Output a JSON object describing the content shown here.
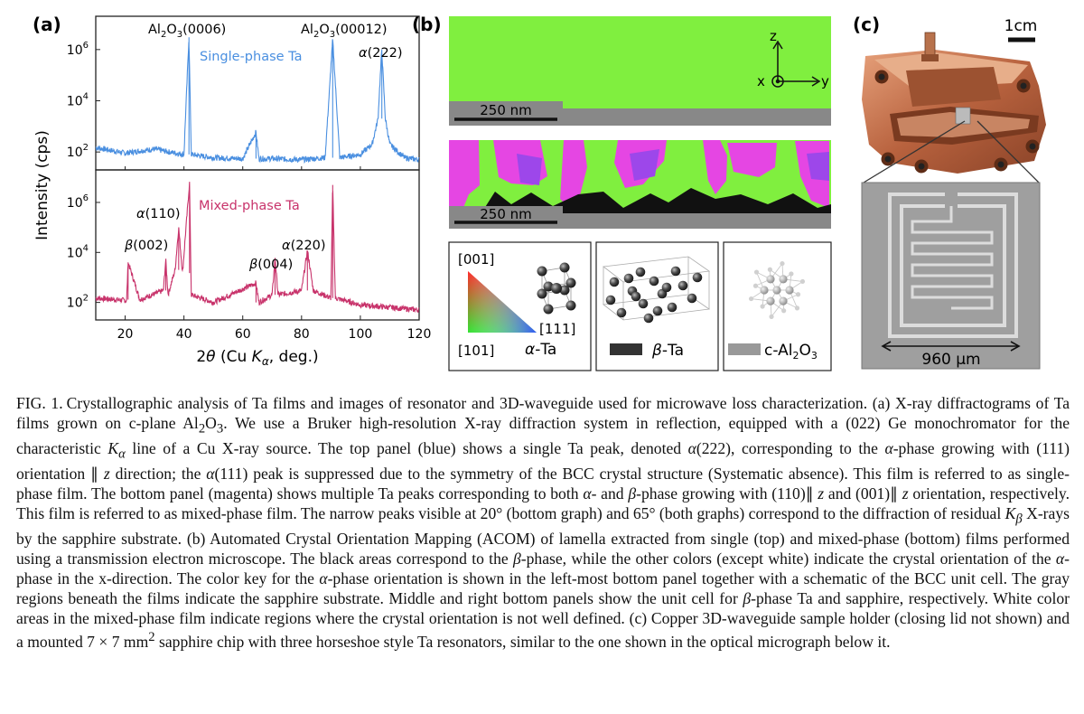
{
  "panel_a": {
    "label": "(a)",
    "ylabel": "Intensity (cps)",
    "xlabel": "2θ (Cu K",
    "xlabel_sub": "α",
    "xlabel_tail": ", deg.)",
    "xticks": [
      "20",
      "40",
      "60",
      "80",
      "100",
      "120"
    ],
    "yticks": [
      {
        "base": "10",
        "exp": "6"
      },
      {
        "base": "10",
        "exp": "4"
      },
      {
        "base": "10",
        "exp": "2"
      }
    ],
    "top_labels": {
      "al_0006": {
        "a": "Al",
        "s1": "2",
        "b": "O",
        "s2": "3",
        "c": "(0006)"
      },
      "al_00012": {
        "a": "Al",
        "s1": "2",
        "b": "O",
        "s2": "3",
        "c": "(00012)"
      }
    },
    "single_label": "Single-phase Ta",
    "mixed_label": "Mixed-phase Ta",
    "peak_labels": {
      "a222": {
        "g": "α",
        "t": "(222)"
      },
      "a110": {
        "g": "α",
        "t": "(110)"
      },
      "b002": {
        "g": "β",
        "t": "(002)"
      },
      "b004": {
        "g": "β",
        "t": "(004)"
      },
      "a220": {
        "g": "α",
        "t": "(220)"
      }
    },
    "colors": {
      "single": "#4a8fe0",
      "mixed": "#c8336b"
    }
  },
  "chart_data": [
    {
      "type": "line",
      "title": "",
      "xlabel": "2θ (Cu Kα, deg.)",
      "ylabel": "Intensity (cps)",
      "xlim": [
        10,
        120
      ],
      "ylim_log10": [
        1.3,
        7.3
      ],
      "log_y": true,
      "series": [
        {
          "name": "Single-phase Ta",
          "x": [
            10,
            20,
            25,
            30,
            35,
            40,
            41.7,
            42.5,
            50,
            60,
            64.5,
            65.5,
            70,
            80,
            88,
            90.6,
            93,
            100,
            104,
            106,
            107.3,
            108.5,
            110,
            115,
            120
          ],
          "y": [
            150,
            90,
            110,
            130,
            100,
            80,
            3000000,
            80,
            60,
            55,
            600,
            55,
            55,
            50,
            60,
            2500000,
            60,
            80,
            200,
            2000,
            1000000,
            2000,
            200,
            60,
            50
          ]
        }
      ]
    },
    {
      "type": "line",
      "title": "",
      "xlabel": "2θ (Cu Kα, deg.)",
      "ylabel": "Intensity (cps)",
      "xlim": [
        10,
        120
      ],
      "ylim_log10": [
        1.3,
        7.3
      ],
      "log_y": true,
      "series": [
        {
          "name": "Mixed-phase Ta",
          "x": [
            10,
            20.5,
            21,
            25,
            33,
            33.8,
            34.6,
            37,
            38.2,
            39.5,
            41.9,
            42.5,
            50,
            64.5,
            65.5,
            70,
            71,
            72,
            80,
            82,
            84,
            90,
            90.6,
            91.5,
            100,
            120
          ],
          "y": [
            150,
            120,
            4000,
            130,
            300,
            5000,
            200,
            2000,
            100000,
            1500,
            6000000,
            200,
            100,
            600,
            100,
            200,
            6000,
            200,
            300,
            12000,
            300,
            150,
            5000000,
            150,
            80,
            50
          ]
        }
      ]
    }
  ],
  "panel_b": {
    "label": "(b)",
    "scale1": "250 nm",
    "scale2": "250 nm",
    "axis_z": "z",
    "axis_x": "x",
    "axis_y": "y",
    "key_001": "[001]",
    "key_101": "[101]",
    "key_111": "[111]",
    "alpha_ta": {
      "g": "α",
      "t": "-Ta"
    },
    "beta_ta": {
      "g": "β",
      "t": "-Ta"
    },
    "sapphire": {
      "a": "c-Al",
      "s1": "2",
      "b": "O",
      "s2": "3"
    },
    "colors": {
      "green": "#80ef3f",
      "magenta": "#e546e3",
      "violet": "#9d47ea",
      "gray": "#888888",
      "black": "#111111"
    }
  },
  "panel_c": {
    "label": "(c)",
    "scale_top": "1cm",
    "scale_bottom": "960 μm",
    "colors": {
      "copper": "#c47a55",
      "chip": "#9f9f9f"
    }
  },
  "caption": {
    "fig_label": "FIG. 1.",
    "p01": "Crystallographic analysis of Ta films and images of resonator and 3D-waveguide used for microwave loss characterization. (a) X-ray diffractograms of Ta films grown on c-plane Al",
    "p02": "O",
    "p03": ". We use a Bruker high-resolution X-ray diffraction system in reflection, equipped with a (022) Ge monochromator for the characteristic ",
    "p04": " line of a Cu X-ray source. The top panel (blue) shows a single Ta peak, denoted ",
    "p05": "(222), corresponding to the ",
    "p06": "-phase growing with (111) orientation ∥ ",
    "p07": " direction; the ",
    "p08": "(111) peak is suppressed due to the symmetry of the BCC crystal structure (Systematic absence). This film is referred to as single-phase film. The bottom panel (magenta) shows multiple Ta peaks corresponding to both ",
    "p09": "- and ",
    "p10": "-phase growing with (110)∥ ",
    "p11": " and (001)∥ ",
    "p12": " orientation, respectively. This film is referred to as mixed-phase film. The narrow peaks visible at 20° (bottom graph) and 65° (both graphs) correspond to the diffraction of residual ",
    "p13": " X-rays by the sapphire substrate. (b) Automated Crystal Orientation Mapping (ACOM) of lamella extracted from single (top) and mixed-phase (bottom) films performed using a transmission electron microscope. The black areas correspond to the ",
    "p14": "-phase, while the other colors (except white) indicate the crystal orientation of the ",
    "p15": "-phase in the x-direction. The color key for the ",
    "p16": "-phase orientation is shown in the left-most bottom panel together with a schematic of the BCC unit cell. The gray regions beneath the films indicate the sapphire substrate. Middle and right bottom panels show the unit cell for ",
    "p17": "-phase Ta and sapphire, respectively. White color areas in the mixed-phase film indicate regions where the crystal orientation is not well defined. (c) Copper 3D-waveguide sample holder (closing lid not shown) and a mounted 7 × 7 mm",
    "p18": " sapphire chip with three horseshoe style Ta resonators, similar to the one shown in the optical micrograph below it.",
    "sub2": "2",
    "sub3": "3",
    "sup2": "2",
    "K": "K",
    "alpha": "α",
    "beta": "β",
    "z": "z"
  }
}
